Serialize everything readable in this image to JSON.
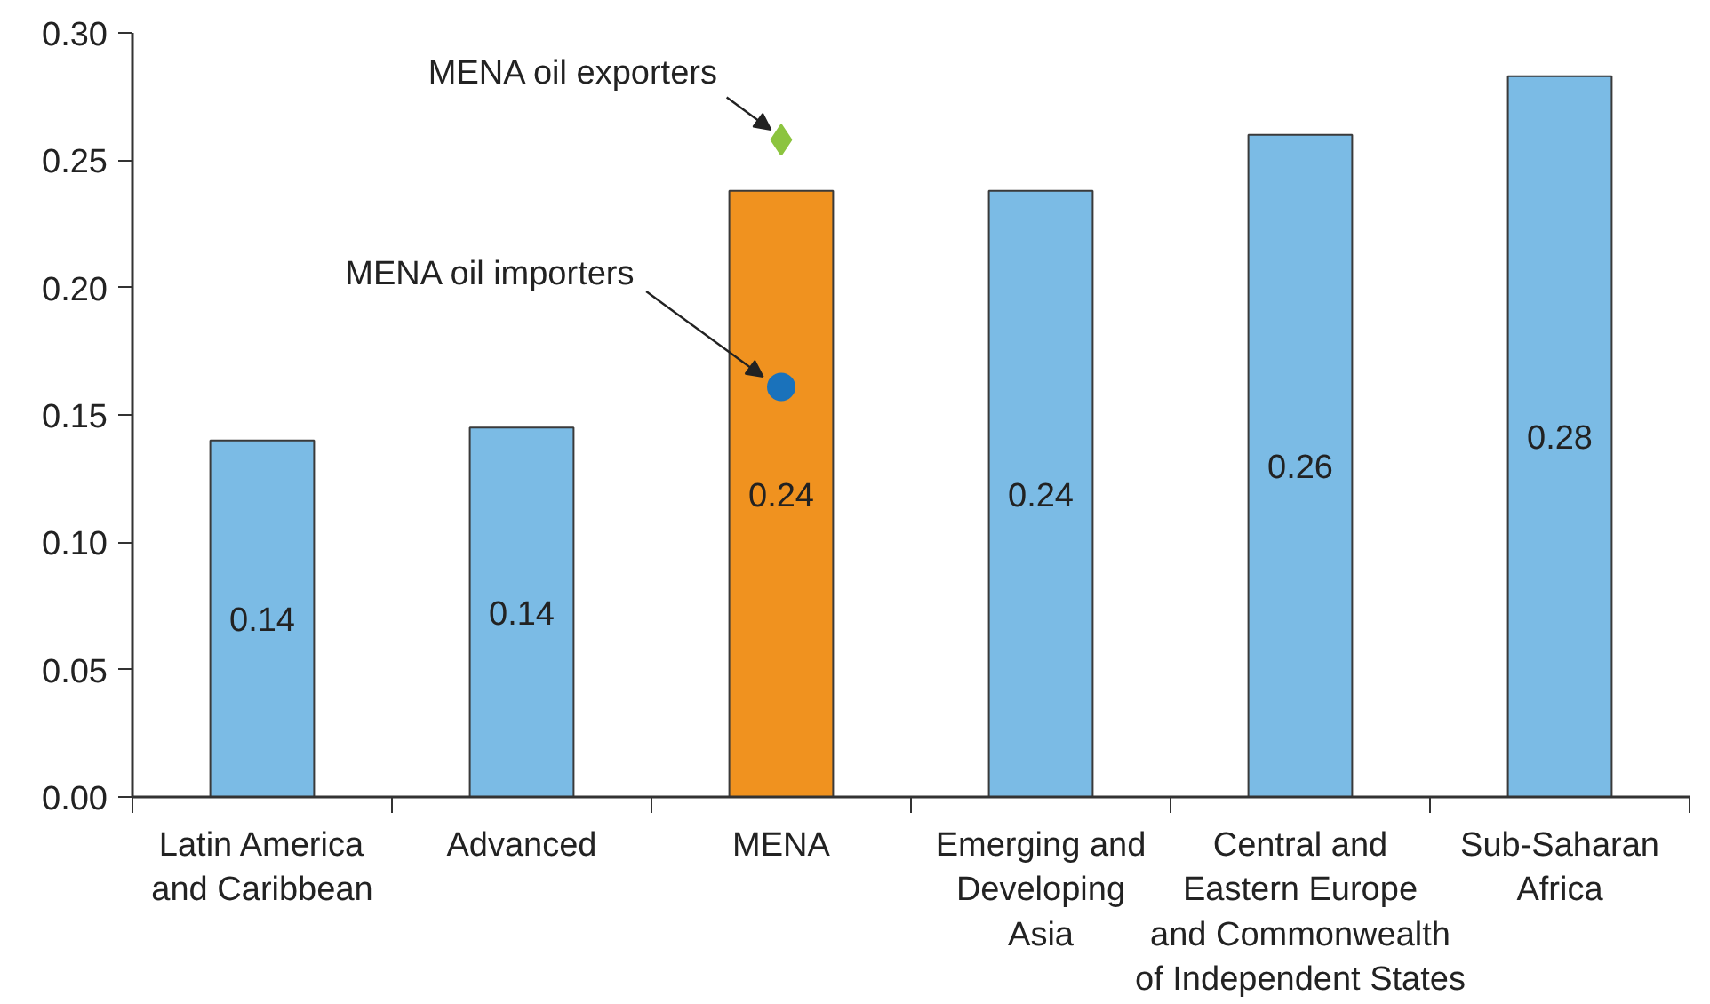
{
  "chart_data": {
    "type": "bar",
    "categories": [
      "Latin America\nand Caribbean",
      "Advanced",
      "MENA",
      "Emerging and\nDeveloping\nAsia",
      "Central and\nEastern Europe\nand Commonwealth\nof Independent States",
      "Sub-Saharan\nAfrica"
    ],
    "ylim": [
      0,
      0.3
    ],
    "yticks": [
      {
        "value": 0,
        "label": "0.00"
      },
      {
        "value": 0.05,
        "label": "0.05"
      },
      {
        "value": 0.1,
        "label": "0.10"
      },
      {
        "value": 0.15,
        "label": "0.15"
      },
      {
        "value": 0.2,
        "label": "0.20"
      },
      {
        "value": 0.25,
        "label": "0.25"
      },
      {
        "value": 0.3,
        "label": "0.30"
      }
    ],
    "grid": false,
    "legend": false,
    "series": [
      {
        "type": "bar",
        "colors": [
          "#7bbbe5",
          "#7bbbe5",
          "#f0921f",
          "#7bbbe5",
          "#7bbbe5",
          "#7bbbe5"
        ],
        "values": [
          0.14,
          0.145,
          0.238,
          0.238,
          0.26,
          0.283
        ],
        "value_labels": [
          "0.14",
          "0.14",
          "0.24",
          "0.24",
          "0.26",
          "0.28"
        ]
      },
      {
        "type": "scatter",
        "name": "MENA oil exporters",
        "color": "#8cc43f",
        "marker": "diamond",
        "x": [
          "MENA"
        ],
        "values": [
          0.258
        ]
      },
      {
        "type": "scatter",
        "name": "MENA oil importers",
        "color": "#1a72bb",
        "marker": "circle",
        "x": [
          "MENA"
        ],
        "values": [
          0.161
        ]
      }
    ]
  }
}
